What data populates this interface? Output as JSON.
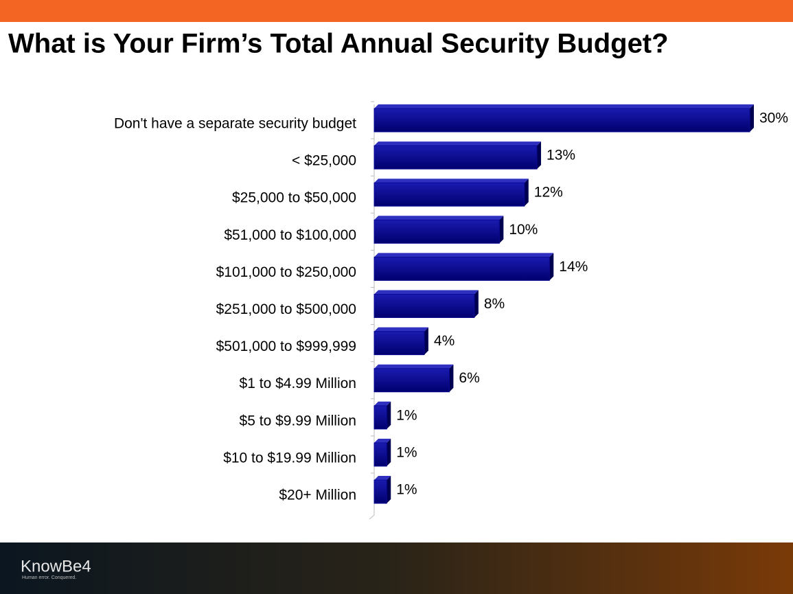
{
  "chart_data": {
    "type": "bar",
    "orientation": "horizontal",
    "title": "What is Your Firm’s Total Annual Security Budget?",
    "categories": [
      "Don't have a separate security budget",
      "< $25,000",
      "$25,000 to $50,000",
      "$51,000 to $100,000",
      "$101,000 to $250,000",
      "$251,000 to $500,000",
      "$501,000 to $999,999",
      "$1 to $4.99 Million",
      "$5 to $9.99 Million",
      "$10 to $19.99 Million",
      "$20+ Million"
    ],
    "values": [
      30,
      13,
      12,
      10,
      14,
      8,
      4,
      6,
      1,
      1,
      1
    ],
    "value_labels": [
      "30%",
      "13%",
      "12%",
      "10%",
      "14%",
      "8%",
      "4%",
      "6%",
      "1%",
      "1%",
      "1%"
    ],
    "color": "#0a0a96",
    "xlim": [
      0,
      30
    ]
  },
  "footer": {
    "logo": "KnowBe4",
    "tagline": "Human error. Conquered."
  }
}
